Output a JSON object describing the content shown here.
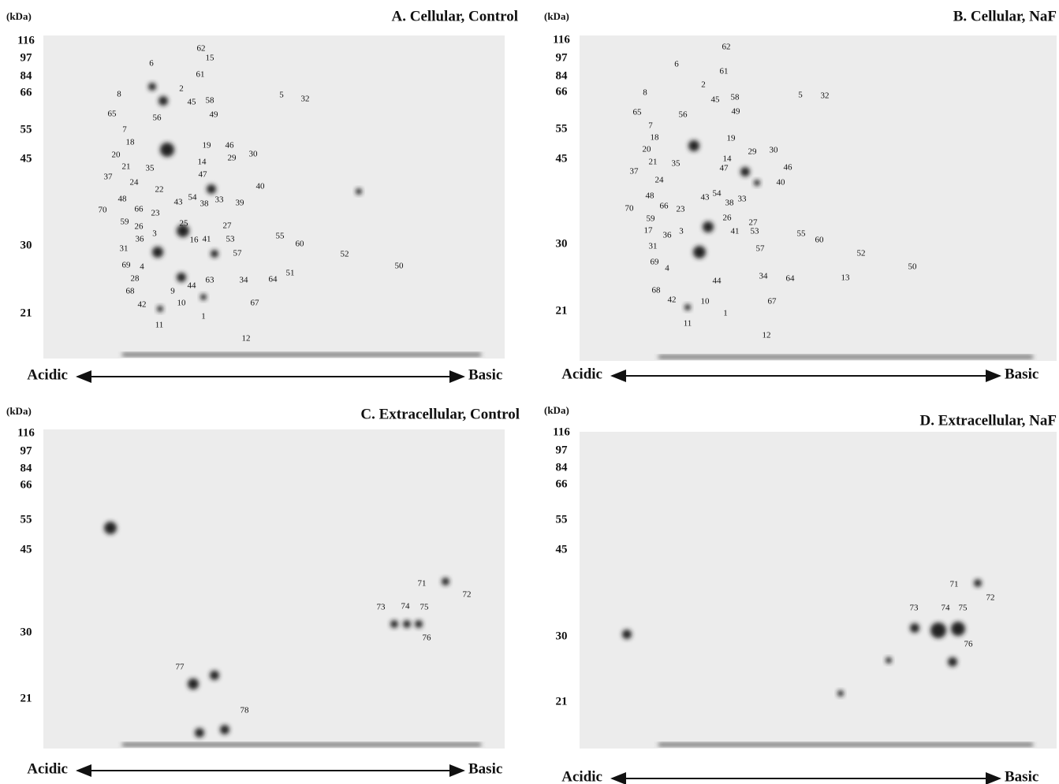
{
  "panels": [
    {
      "title": "A. Cellular, Control",
      "unit": "(kDa)",
      "mw_markers": [
        116,
        97,
        84,
        66,
        55,
        45,
        30,
        21
      ],
      "acidic": "Acidic",
      "basic": "Basic",
      "spots": [
        "62",
        "15",
        "61",
        "6",
        "2",
        "8",
        "45",
        "58",
        "65",
        "56",
        "49",
        "7",
        "18",
        "19",
        "20",
        "46",
        "29",
        "30",
        "21",
        "35",
        "14",
        "37",
        "47",
        "40",
        "24",
        "22",
        "54",
        "43",
        "33",
        "39",
        "48",
        "38",
        "66",
        "70",
        "23",
        "59",
        "25",
        "26",
        "27",
        "3",
        "16",
        "41",
        "53",
        "55",
        "36",
        "60",
        "31",
        "57",
        "52",
        "69",
        "4",
        "50",
        "28",
        "63",
        "44",
        "34",
        "64",
        "51",
        "68",
        "9",
        "10",
        "42",
        "67",
        "1",
        "11",
        "12",
        "5",
        "32"
      ]
    },
    {
      "title": "B. Cellular, NaF",
      "unit": "(kDa)",
      "mw_markers": [
        116,
        97,
        84,
        66,
        55,
        45,
        30,
        21
      ],
      "acidic": "Acidic",
      "basic": "Basic",
      "spots": [
        "62",
        "61",
        "6",
        "2",
        "8",
        "45",
        "58",
        "65",
        "56",
        "49",
        "5",
        "32",
        "7",
        "18",
        "19",
        "20",
        "29",
        "30",
        "21",
        "35",
        "14",
        "46",
        "47",
        "37",
        "24",
        "40",
        "43",
        "54",
        "33",
        "48",
        "38",
        "66",
        "23",
        "70",
        "59",
        "26",
        "27",
        "17",
        "3",
        "41",
        "53",
        "36",
        "55",
        "60",
        "31",
        "57",
        "52",
        "69",
        "4",
        "50",
        "13",
        "44",
        "34",
        "64",
        "68",
        "10",
        "42",
        "67",
        "1",
        "11",
        "12"
      ]
    },
    {
      "title": "C. Extracellular, Control",
      "unit": "(kDa)",
      "mw_markers": [
        116,
        97,
        84,
        66,
        55,
        45,
        30,
        21
      ],
      "acidic": "Acidic",
      "basic": "Basic",
      "spots": [
        "71",
        "72",
        "73",
        "74",
        "75",
        "76",
        "77",
        "78"
      ]
    },
    {
      "title": "D. Extracellular, NaF",
      "unit": "(kDa)",
      "mw_markers": [
        116,
        97,
        84,
        66,
        55,
        45,
        30,
        21
      ],
      "acidic": "Acidic",
      "basic": "Basic",
      "spots": [
        "71",
        "72",
        "73",
        "74",
        "75",
        "76"
      ]
    }
  ]
}
